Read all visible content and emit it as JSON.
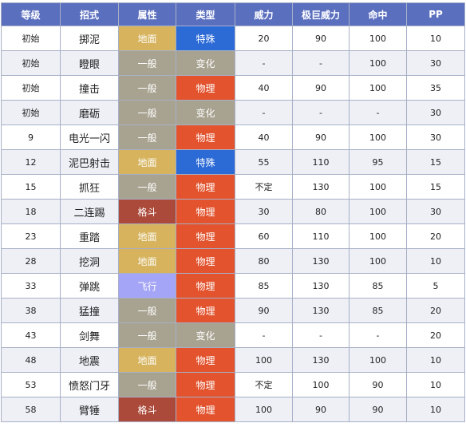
{
  "headers": [
    "等级",
    "招式",
    "属性",
    "类型",
    "威力",
    "极巨威力",
    "命中",
    "PP"
  ],
  "type_colors": {
    "地面": "#d6b35c",
    "一般": "#a8a290",
    "格斗": "#ab4a3a",
    "飞行": "#a5a5f7",
    "特殊": "#2c6ad6",
    "变化": "#a8a290",
    "物理": "#e2532e"
  },
  "rows": [
    {
      "level": "初始",
      "move": "掷泥",
      "type": "地面",
      "category": "特殊",
      "power": "20",
      "max_power": "90",
      "accuracy": "100",
      "pp": "10"
    },
    {
      "level": "初始",
      "move": "瞪眼",
      "type": "一般",
      "category": "变化",
      "power": "-",
      "max_power": "-",
      "accuracy": "100",
      "pp": "30"
    },
    {
      "level": "初始",
      "move": "撞击",
      "type": "一般",
      "category": "物理",
      "power": "40",
      "max_power": "90",
      "accuracy": "100",
      "pp": "35"
    },
    {
      "level": "初始",
      "move": "磨砺",
      "type": "一般",
      "category": "变化",
      "power": "-",
      "max_power": "-",
      "accuracy": "-",
      "pp": "30"
    },
    {
      "level": "9",
      "move": "电光一闪",
      "type": "一般",
      "category": "物理",
      "power": "40",
      "max_power": "90",
      "accuracy": "100",
      "pp": "30"
    },
    {
      "level": "12",
      "move": "泥巴射击",
      "type": "地面",
      "category": "特殊",
      "power": "55",
      "max_power": "110",
      "accuracy": "95",
      "pp": "15"
    },
    {
      "level": "15",
      "move": "抓狂",
      "type": "一般",
      "category": "物理",
      "power": "不定",
      "max_power": "130",
      "accuracy": "100",
      "pp": "15"
    },
    {
      "level": "18",
      "move": "二连踢",
      "type": "格斗",
      "category": "物理",
      "power": "30",
      "max_power": "80",
      "accuracy": "100",
      "pp": "30"
    },
    {
      "level": "23",
      "move": "重踏",
      "type": "地面",
      "category": "物理",
      "power": "60",
      "max_power": "110",
      "accuracy": "100",
      "pp": "20"
    },
    {
      "level": "28",
      "move": "挖洞",
      "type": "地面",
      "category": "物理",
      "power": "80",
      "max_power": "130",
      "accuracy": "100",
      "pp": "10"
    },
    {
      "level": "33",
      "move": "弹跳",
      "type": "飞行",
      "category": "物理",
      "power": "85",
      "max_power": "130",
      "accuracy": "85",
      "pp": "5"
    },
    {
      "level": "38",
      "move": "猛撞",
      "type": "一般",
      "category": "物理",
      "power": "90",
      "max_power": "130",
      "accuracy": "85",
      "pp": "20"
    },
    {
      "level": "43",
      "move": "剑舞",
      "type": "一般",
      "category": "变化",
      "power": "-",
      "max_power": "-",
      "accuracy": "-",
      "pp": "20"
    },
    {
      "level": "48",
      "move": "地震",
      "type": "地面",
      "category": "物理",
      "power": "100",
      "max_power": "130",
      "accuracy": "100",
      "pp": "10"
    },
    {
      "level": "53",
      "move": "愤怒门牙",
      "type": "一般",
      "category": "物理",
      "power": "不定",
      "max_power": "100",
      "accuracy": "90",
      "pp": "10"
    },
    {
      "level": "58",
      "move": "臂锤",
      "type": "格斗",
      "category": "物理",
      "power": "100",
      "max_power": "90",
      "accuracy": "90",
      "pp": "10"
    }
  ]
}
